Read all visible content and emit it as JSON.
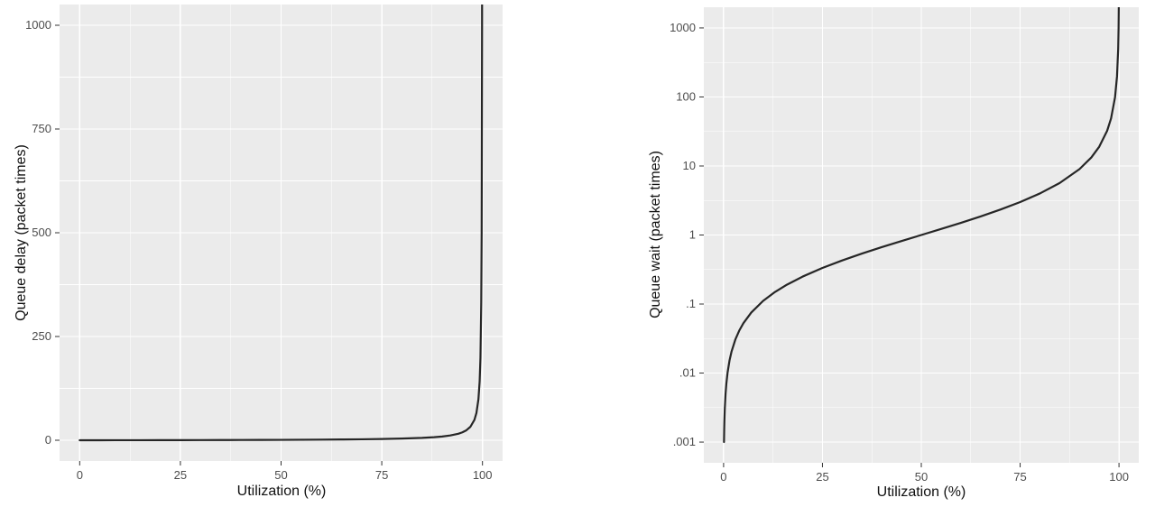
{
  "figure": {
    "description": "Two side-by-side line charts of M/M/1 queue delay versus link utilization",
    "background": "#ffffff"
  },
  "theme": {
    "panel_bg": "#ebebeb",
    "grid_major": "#ffffff",
    "grid_minor": "#f5f5f5",
    "curve_color": "#262626",
    "tick_text_color": "#4d4d4d",
    "axis_title_color": "#111111",
    "tick_mark_color": "#333333"
  },
  "chart_data": [
    {
      "type": "line",
      "title": "",
      "xlabel": "Utilization (%)",
      "ylabel": "Queue delay (packet times)",
      "y_scale": "linear",
      "xlim": [
        -5,
        105
      ],
      "ylim": [
        -50,
        1050
      ],
      "x_ticks": [
        0,
        25,
        50,
        75,
        100
      ],
      "x_tick_labels": [
        "0",
        "25",
        "50",
        "75",
        "100"
      ],
      "x_minor": [
        12.5,
        37.5,
        62.5,
        87.5
      ],
      "y_ticks": [
        0,
        250,
        500,
        750,
        1000
      ],
      "y_tick_labels": [
        "0",
        "250",
        "500",
        "750",
        "1000"
      ],
      "y_minor": [
        125,
        375,
        625,
        875
      ],
      "grid": true,
      "legend": "none",
      "series": [
        {
          "name": "queue-delay-curve",
          "x": [
            0,
            5,
            10,
            15,
            20,
            25,
            30,
            35,
            40,
            45,
            50,
            55,
            60,
            65,
            70,
            75,
            80,
            85,
            88,
            90,
            92,
            94,
            95,
            96,
            97,
            98,
            98.5,
            99,
            99.3,
            99.5,
            99.7,
            99.8,
            99.9,
            99.95
          ],
          "y": [
            0,
            0.0526,
            0.1111,
            0.1765,
            0.25,
            0.3333,
            0.4286,
            0.5385,
            0.6667,
            0.8182,
            1,
            1.2222,
            1.5,
            1.8571,
            2.3333,
            3,
            4,
            5.6667,
            7.3333,
            9,
            11.5,
            15.6667,
            19,
            24,
            32.3333,
            49,
            65.6667,
            99,
            141.857,
            199,
            332.333,
            499,
            999,
            1999
          ]
        }
      ]
    },
    {
      "type": "line",
      "title": "",
      "xlabel": "Utilization (%)",
      "ylabel": "Queue wait (packet times)",
      "y_scale": "log10",
      "xlim": [
        -5,
        105
      ],
      "ylim_log": [
        -3.3,
        3.3
      ],
      "x_ticks": [
        0,
        25,
        50,
        75,
        100
      ],
      "x_tick_labels": [
        "0",
        "25",
        "50",
        "75",
        "100"
      ],
      "x_minor": [
        12.5,
        37.5,
        62.5,
        87.5
      ],
      "y_ticks": [
        1000,
        100,
        10,
        1,
        0.1,
        0.01,
        0.001
      ],
      "y_tick_labels": [
        "1000",
        "100",
        "10",
        "1",
        ".1",
        ".01",
        ".001"
      ],
      "y_minor": [
        0.00316,
        0.0316,
        0.316,
        3.16,
        31.6,
        316
      ],
      "grid": true,
      "legend": "none",
      "series": [
        {
          "name": "queue-wait-curve",
          "x": [
            0.1,
            0.15,
            0.2,
            0.3,
            0.5,
            0.7,
            1,
            1.5,
            2,
            3,
            4,
            5,
            7,
            10,
            13,
            16,
            20,
            25,
            30,
            35,
            40,
            45,
            50,
            55,
            60,
            65,
            70,
            75,
            80,
            85,
            90,
            93,
            95,
            97,
            98,
            99,
            99.5,
            99.8,
            99.9,
            99.95
          ],
          "y": [
            0.001001,
            0.0015023,
            0.002004,
            0.003009,
            0.0050251,
            0.0070493,
            0.010101,
            0.015228,
            0.020408,
            0.030928,
            0.041667,
            0.052632,
            0.075269,
            0.11111,
            0.14943,
            0.19048,
            0.25,
            0.33333,
            0.42857,
            0.53846,
            0.66667,
            0.81818,
            1,
            1.2222,
            1.5,
            1.8571,
            2.3333,
            3,
            4,
            5.6667,
            9,
            13.2857,
            19,
            32.3333,
            49,
            99,
            199,
            499,
            999,
            1999
          ]
        }
      ]
    }
  ]
}
